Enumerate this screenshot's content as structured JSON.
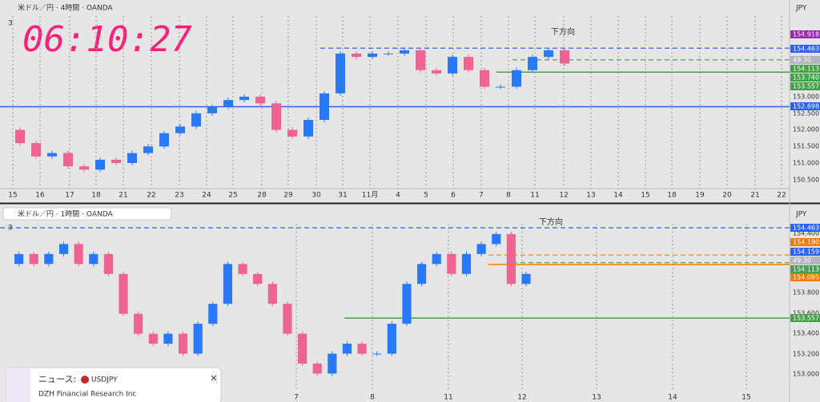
{
  "top_panel": {
    "title": "米ドル／円 · 4時間 · OANDA",
    "indicator_count": "3",
    "countdown": "06:10:27",
    "annotation": "下方向",
    "currency": "JPY",
    "price_scale": [
      "153.000",
      "152.500",
      "152.000",
      "151.500",
      "151.000",
      "150.500"
    ],
    "price_tags": [
      {
        "label": "154.918",
        "color": "#9c27b0"
      },
      {
        "label": "154.463",
        "color": "#2962ff"
      },
      {
        "label": "49:30",
        "color": "#b2b5be"
      },
      {
        "label": "154.113",
        "color": "#43a047"
      },
      {
        "label": "153.740",
        "color": "#43a047"
      },
      {
        "label": "153.557",
        "color": "#43a047"
      },
      {
        "label": "152.698",
        "color": "#2962ff"
      }
    ],
    "levels": [
      {
        "price": 154.463,
        "color": "#2962ff",
        "style": "dashed"
      },
      {
        "price": 154.113,
        "color": "#43a047",
        "style": "dashed"
      },
      {
        "price": 153.74,
        "color": "#43a047",
        "style": "solid"
      },
      {
        "price": 152.698,
        "color": "#2962ff",
        "style": "solid"
      }
    ],
    "closes": [
      152.0,
      151.6,
      151.2,
      151.3,
      150.9,
      150.8,
      151.1,
      151.0,
      151.3,
      151.5,
      151.9,
      152.1,
      152.5,
      152.7,
      152.9,
      153.0,
      152.8,
      152.0,
      151.8,
      152.3,
      153.1,
      154.3,
      154.2,
      154.3,
      154.3,
      154.4,
      153.8,
      153.7,
      154.2,
      153.8,
      153.3,
      153.3,
      153.8,
      154.2,
      154.4,
      154.0
    ],
    "time_axis": [
      "15",
      "16",
      "17",
      "18",
      "21",
      "22",
      "23",
      "24",
      "25",
      "28",
      "29",
      "30",
      "31",
      "11月",
      "4",
      "5",
      "6",
      "7",
      "8",
      "11",
      "12",
      "13",
      "14",
      "15",
      "18",
      "19",
      "20",
      "21",
      "22"
    ]
  },
  "bottom_panel": {
    "title": "米ドル／円 · 1時間 · OANDA",
    "indicator_count": "3",
    "annotation": "下方向",
    "currency": "JPY",
    "price_scale": [
      "154.400",
      "153.800",
      "153.600",
      "153.400",
      "153.200",
      "153.000"
    ],
    "price_tags": [
      {
        "label": "154.463",
        "color": "#2962ff"
      },
      {
        "label": "154.190",
        "color": "#f57c00"
      },
      {
        "label": "154.159",
        "color": "#2962ff"
      },
      {
        "label": "49:30",
        "color": "#b2b5be"
      },
      {
        "label": "154.113",
        "color": "#43a047"
      },
      {
        "label": "154.095",
        "color": "#f57c00"
      },
      {
        "label": "153.557",
        "color": "#43a047"
      }
    ],
    "levels": [
      {
        "price": 154.463,
        "color": "#2962ff",
        "style": "dashed"
      },
      {
        "price": 154.19,
        "color": "#f57c00",
        "style": "dashed"
      },
      {
        "price": 154.113,
        "color": "#43a047",
        "style": "dashed"
      },
      {
        "price": 154.095,
        "color": "#f57c00",
        "style": "solid"
      },
      {
        "price": 153.557,
        "color": "#43a047",
        "style": "solid"
      }
    ],
    "closes": [
      154.1,
      154.2,
      154.1,
      154.2,
      154.3,
      154.1,
      154.2,
      154.0,
      153.6,
      153.4,
      153.3,
      153.4,
      153.2,
      153.5,
      153.7,
      154.1,
      154.0,
      153.9,
      153.7,
      153.4,
      153.1,
      153.0,
      153.2,
      153.3,
      153.2,
      153.2,
      153.5,
      153.9,
      154.1,
      154.2,
      154.0,
      154.2,
      154.3,
      154.4,
      153.9,
      154.0
    ],
    "time_axis": [
      "7",
      "8",
      "11",
      "12",
      "13",
      "14",
      "15"
    ]
  },
  "news": {
    "label": "ニュース:",
    "symbol": "USDJPY",
    "source": "DZH Financial Research Inc"
  }
}
